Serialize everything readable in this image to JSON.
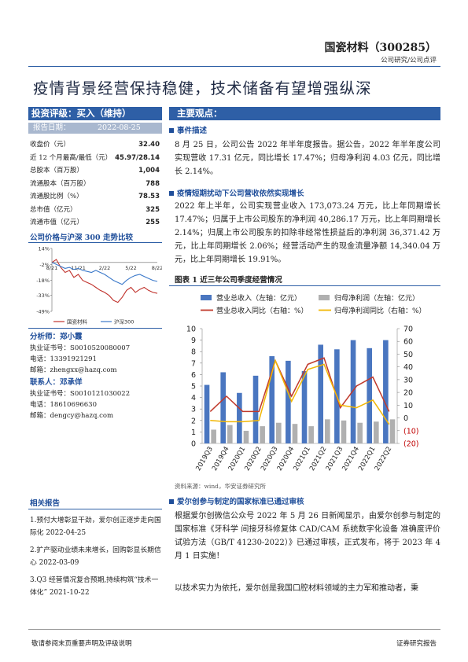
{
  "header": {
    "company": "国瓷材料（300285）",
    "category": "公司研究/公司点评"
  },
  "title": "疫情背景经营保持稳健，技术储备有望增强纵深",
  "rating": {
    "label": "投资评级：买入（维持）",
    "date_label": "报告日期：",
    "date": "2022-08-25"
  },
  "stats": {
    "rows": [
      [
        "收盘价（元）",
        "32.40"
      ],
      [
        "近 12 个月最高/最低（元）",
        "45.97/28.14"
      ],
      [
        "总股本（百万股）",
        "1,004"
      ],
      [
        "流通股本（百万股）",
        "788"
      ],
      [
        "流通股比例（%）",
        "78.53"
      ],
      [
        "总市值（亿元）",
        "325"
      ],
      [
        "流通市值（亿元）",
        "255"
      ]
    ]
  },
  "price_chart": {
    "type": "line",
    "title": "公司价格与沪深 300 走势比较",
    "categories": [
      "8/21",
      null,
      null,
      null,
      null,
      null,
      "11/21",
      null,
      null,
      null,
      null,
      null,
      "2/22",
      null,
      null,
      null,
      null,
      null,
      "5/22",
      null,
      null,
      null,
      null,
      null,
      "8/22"
    ],
    "series": [
      {
        "name": "国瓷材料",
        "color": "#c0312b",
        "values": [
          0,
          3,
          -5,
          -10,
          -8,
          -15,
          -12,
          -18,
          -20,
          -22,
          -25,
          -28,
          -30,
          -33,
          -38,
          -40,
          -35,
          -28,
          -25,
          -30,
          -27,
          -25,
          -28,
          -30,
          -31
        ]
      },
      {
        "name": "沪深300",
        "color": "#3a78c9",
        "values": [
          0,
          -2,
          -4,
          -6,
          -5,
          -7,
          -6,
          -8,
          -9,
          -10,
          -8,
          -10,
          -12,
          -15,
          -18,
          -20,
          -22,
          -18,
          -15,
          -13,
          -12,
          -14,
          -16,
          -18,
          -19
        ]
      }
    ],
    "ylim": [
      -49,
      14
    ],
    "yticks": [
      {
        "value": 14,
        "label": "14%"
      },
      {
        "value": -2,
        "label": "-2%"
      },
      {
        "value": -18,
        "label": "-18%"
      },
      {
        "value": -33,
        "label": "-33%"
      },
      {
        "value": -49,
        "label": "-49%"
      }
    ]
  },
  "analyst": {
    "label": "分析师：郑小霞",
    "lines": [
      "执业证书号：S0010520080007",
      "电话：13391921291",
      "邮箱：zhengxx@hazq.com"
    ]
  },
  "contact": {
    "label": "联系人：邓承佯",
    "lines": [
      "执业证书号：S0010121030022",
      "电话：18610696630",
      "邮箱：dengcy@hazq.com"
    ]
  },
  "related": {
    "title": "相关报告",
    "items": [
      "1.预付大增彰显干劲，爱尔创正逐步走向国际化 2022-04-25",
      "2.扩产驱动业绩未来增长，回购彰显长期信心 2022-03-09",
      "3.Q3 经营情况复合预期,持续构筑“技术一体化” 2021-10-22"
    ]
  },
  "main": {
    "title": "主要观点：",
    "sections": [
      {
        "heading": "事件描述",
        "text": "8 月 25 日，公司公告 2022 年半年度报告。据公告，2022 年半年度公司实现营收 17.31 亿元，同比增长 17.47%；归母净利润 4.03 亿元，同比增长 2.14%。"
      },
      {
        "heading": "疫情短期扰动下公司营收依然实现增长",
        "text": "2022 年上半年，公司实现营业收入 173,073.24 万元，比上年同期增长 17.47%；归属于上市公司股东的净利润 40,286.17 万元，比上年同期增长 2.14%；归属上市公司股东的扣除非经常性损益后的净利润 36,371.42 万元，比上年同期增长 2.06%；经营活动产生的现金流量净额 14,340.04 万元，比上年同期增长 19.91%。"
      },
      {
        "heading": "爱尔创参与制定的国家标准已通过审核",
        "text": "根据爱尔创微信公众号 2022 年 5 月 26 日新闻显示，由爱尔创参与制定的国家标准《牙科学 间接牙科修复体 CAD/CAM 系统数字化设备 准确度评价试验方法（GB/T 41230-2022）》已通过审核，正式发布，将于 2023 年 4 月 1 日实施！"
      }
    ],
    "closing": "以技术实力为依托，爱尔创是我国口腔材料领域的主力军和推动者，秉"
  },
  "figure1": {
    "type": "bar_line",
    "title": "图表 1 近三年公司季度经营情况",
    "source": "资料来源：wind，华安证券研究所",
    "categories": [
      "2019Q3",
      "2019Q4",
      "2020Q1",
      "2020Q2",
      "2020Q3",
      "2020Q4",
      "2021Q1",
      "2021Q2",
      "2021Q3",
      "2021Q4",
      "2022Q1",
      "2022Q2"
    ],
    "series": [
      {
        "name": "营业总收入（左轴：亿元）",
        "kind": "bar",
        "color": "#4a76c0",
        "values": [
          5.1,
          6.2,
          4.4,
          5.9,
          7.6,
          7.2,
          6.3,
          8.6,
          8.2,
          9.0,
          8.3,
          9.0
        ]
      },
      {
        "name": "归母净利润（左轴：亿元）",
        "kind": "bar",
        "color": "#b0b0b0",
        "values": [
          1.2,
          1.6,
          1.1,
          1.5,
          1.8,
          1.7,
          1.5,
          2.1,
          2.0,
          1.8,
          1.9,
          2.1
        ]
      },
      {
        "name": "营业总收入同比（右轴：%）",
        "kind": "line",
        "axis": "y2",
        "color": "#c0392b",
        "values": [
          5,
          17,
          5,
          5,
          45,
          17,
          42,
          47,
          8,
          25,
          32,
          5
        ]
      },
      {
        "name": "归母净利润同比（右轴：%）",
        "kind": "line",
        "axis": "y2",
        "color": "#f2b705",
        "values": [
          -2,
          -3,
          -3,
          -2,
          45,
          13,
          38,
          42,
          10,
          8,
          14,
          -5
        ]
      }
    ],
    "ylim": [
      0,
      10
    ],
    "yticks": [
      0,
      1,
      2,
      3,
      4,
      5,
      6,
      7,
      8,
      9,
      10
    ],
    "y2lim": [
      -20,
      70
    ],
    "y2ticks": [
      {
        "value": -20,
        "label": "(20)"
      },
      {
        "value": -10,
        "label": "(10)"
      },
      0,
      10,
      20,
      30,
      40,
      50,
      60,
      70
    ]
  },
  "footer": {
    "left": "敬请参阅末页重要声明及评级说明",
    "right": "证券研究报告"
  }
}
